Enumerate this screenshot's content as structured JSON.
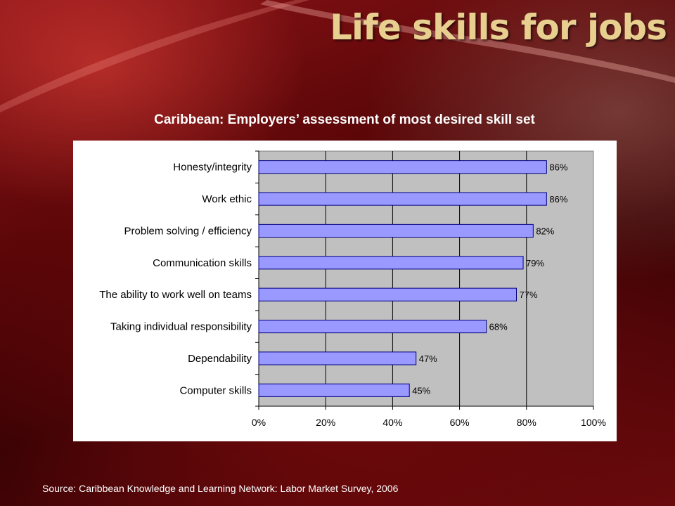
{
  "slide": {
    "title": "Life skills for jobs",
    "source": "Source: Caribbean Knowledge and Learning Network: Labor Market Survey, 2006"
  },
  "colors": {
    "bar_fill": "#9999ff",
    "bar_stroke": "#000080",
    "plot_bg": "#c0c0c0",
    "title_gold": "#e8cf8f"
  },
  "chart_data": {
    "type": "bar",
    "orientation": "horizontal",
    "title": "Caribbean: Employers’ assessment of most desired skill set",
    "categories": [
      "Honesty/integrity",
      "Work ethic",
      "Problem solving / efficiency",
      "Communication skills",
      "The ability to work well on teams",
      "Taking individual responsibility",
      "Dependability",
      "Computer skills"
    ],
    "values": [
      86,
      86,
      82,
      79,
      77,
      68,
      47,
      45
    ],
    "data_labels": [
      "86%",
      "86%",
      "82%",
      "79%",
      "77%",
      "68%",
      "47%",
      "45%"
    ],
    "xlim": [
      0,
      100
    ],
    "xticks": [
      "0%",
      "20%",
      "40%",
      "60%",
      "80%",
      "100%"
    ],
    "xlabel": "",
    "ylabel": "",
    "grid": "vertical",
    "legend": "none"
  }
}
